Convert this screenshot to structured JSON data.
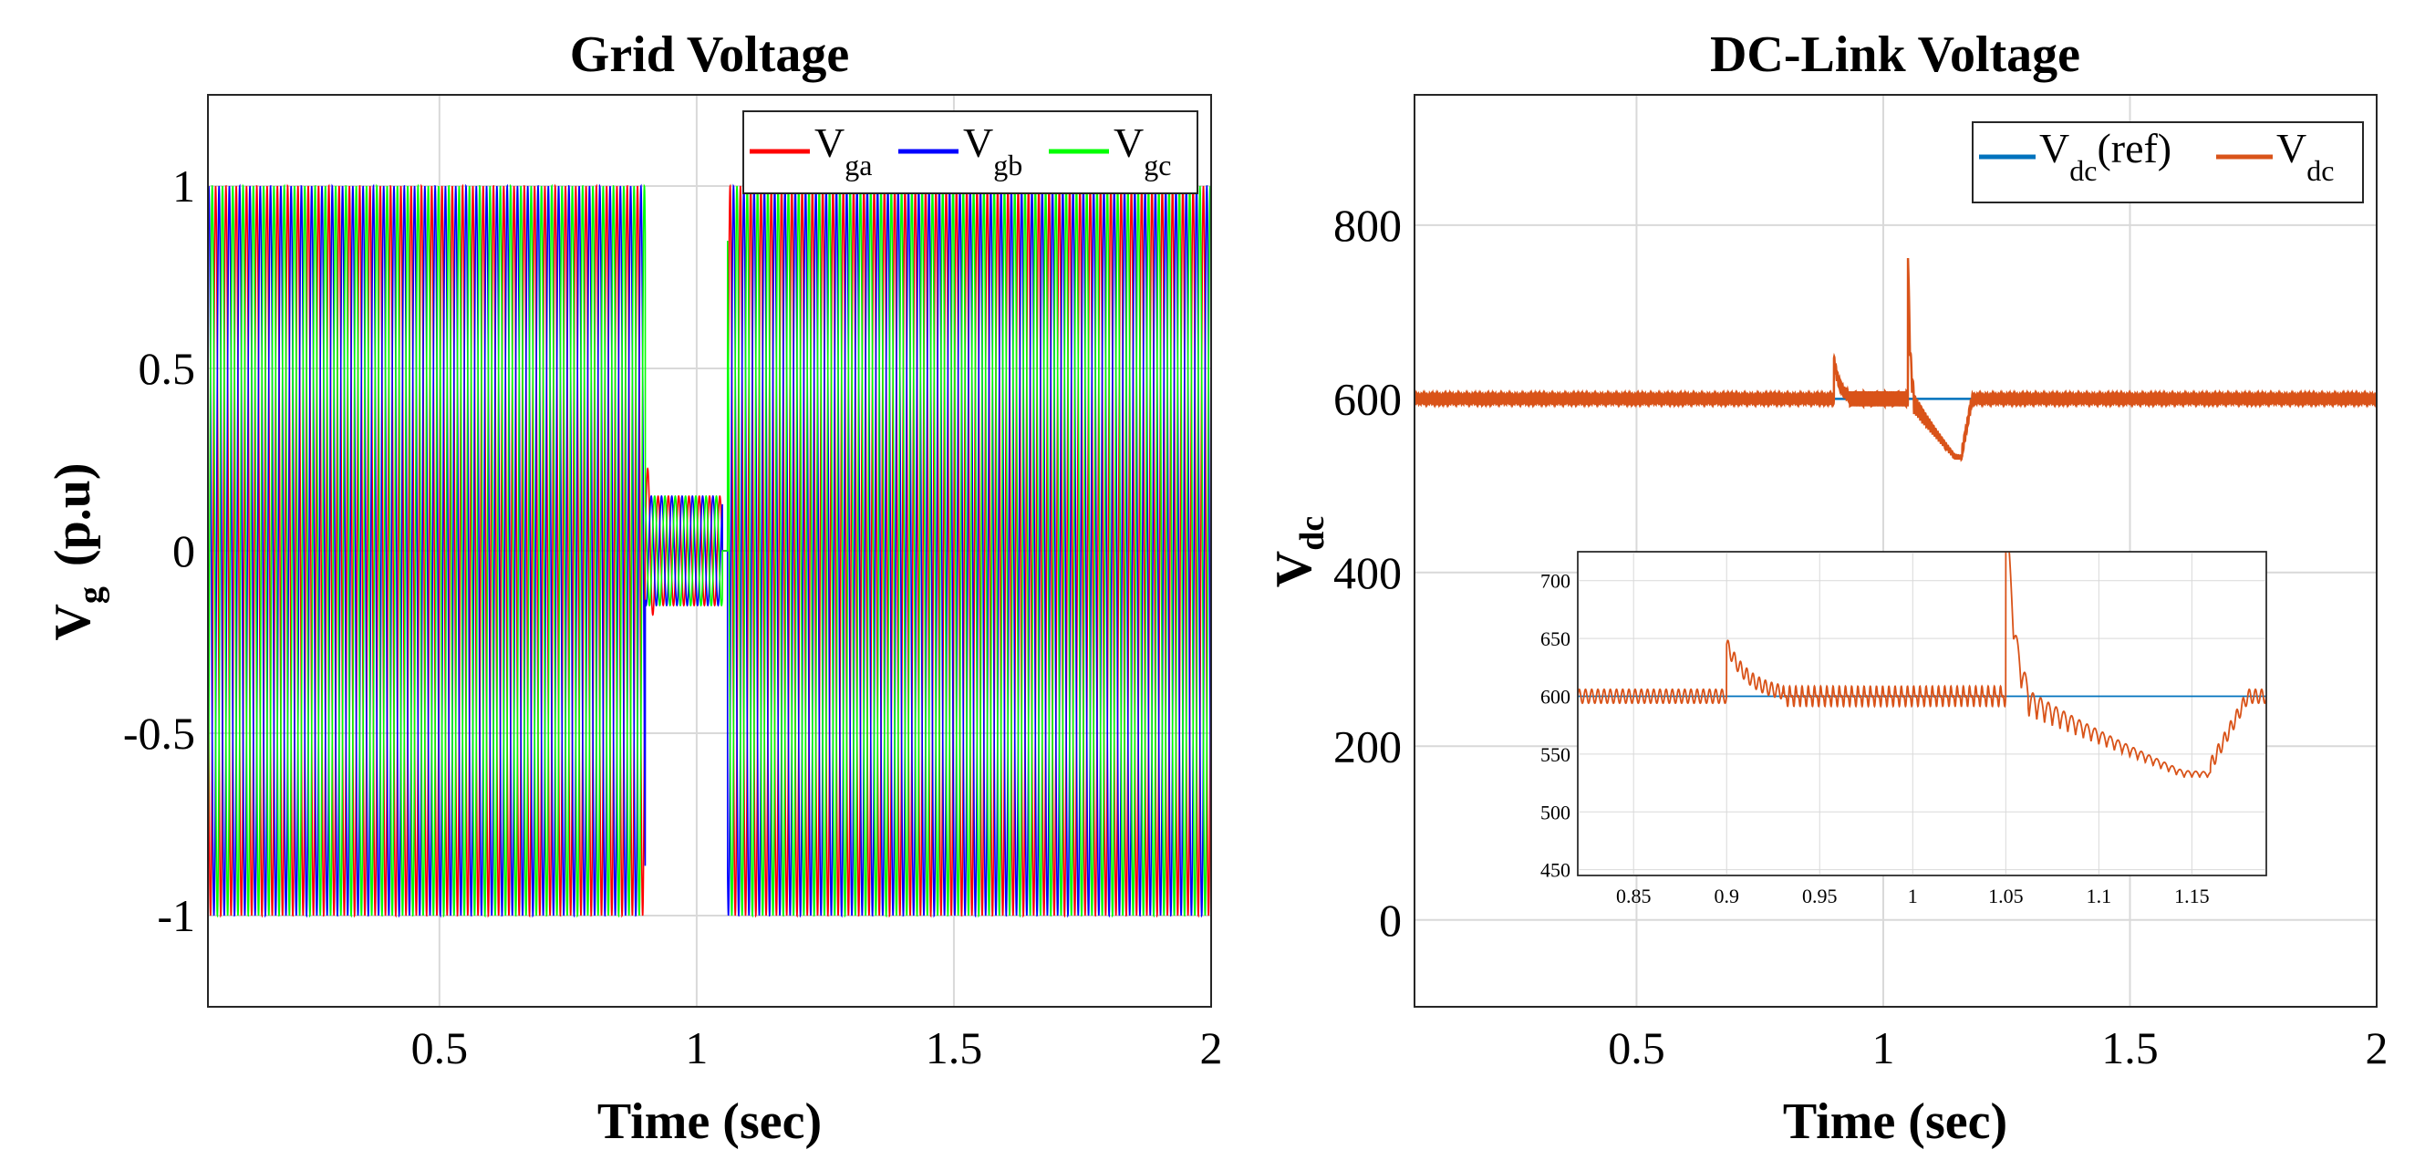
{
  "chart_data": [
    {
      "type": "line",
      "title": "Grid Voltage",
      "xlabel": "Time (sec)",
      "ylabel": "V",
      "ylabel_sub": "g",
      "ylabel_suffix": "(p.u)",
      "xlim": [
        0.05,
        2.0
      ],
      "ylim": [
        -1.25,
        1.25
      ],
      "xticks": [
        0.5,
        1,
        1.5,
        2
      ],
      "xtick_labels": [
        "0.5",
        "1",
        "1.5",
        "2"
      ],
      "yticks": [
        -1,
        -0.5,
        0,
        0.5,
        1
      ],
      "ytick_labels": [
        "-1",
        "-0.5",
        "0",
        "0.5",
        "1"
      ],
      "grid": true,
      "legend_position": "top-right",
      "legend": [
        {
          "label": "V",
          "sub": "ga",
          "color": "#ff0000"
        },
        {
          "label": "V",
          "sub": "gb",
          "color": "#0000ff"
        },
        {
          "label": "V",
          "sub": "gc",
          "color": "#00ff00"
        }
      ],
      "series": [
        {
          "name": "Vga",
          "amplitude_normal": 1.0,
          "amplitude_fault": 0.15,
          "fault_start": 0.9,
          "fault_end": 1.05,
          "fault_peak": 0.25
        },
        {
          "name": "Vgb",
          "amplitude_normal": 1.0,
          "amplitude_fault": 0.15,
          "fault_start": 0.9,
          "fault_end": 1.05
        },
        {
          "name": "Vgc",
          "amplitude_normal": 1.0,
          "amplitude_fault": 0.15,
          "fault_start": 0.9,
          "fault_end": 1.05
        }
      ],
      "gap_start": 1.05,
      "gap_end": 1.06
    },
    {
      "type": "line",
      "title": "DC-Link Voltage",
      "xlabel": "Time (sec)",
      "ylabel": "V",
      "ylabel_sub": "dc",
      "xlim": [
        0.05,
        2.0
      ],
      "ylim": [
        -100,
        950
      ],
      "xticks": [
        0.5,
        1,
        1.5,
        2
      ],
      "xtick_labels": [
        "0.5",
        "1",
        "1.5",
        "2"
      ],
      "yticks": [
        0,
        200,
        400,
        600,
        800
      ],
      "ytick_labels": [
        "0",
        "200",
        "400",
        "600",
        "800"
      ],
      "grid": true,
      "legend_position": "top-right",
      "legend": [
        {
          "label": "V",
          "sub": "dc",
          "suffix": "(ref)",
          "color": "#0072bd"
        },
        {
          "label": "V",
          "sub": "dc",
          "suffix": "",
          "color": "#d95319"
        }
      ],
      "series": [
        {
          "name": "Vdc(ref)",
          "constant": 600
        },
        {
          "name": "Vdc",
          "nominal": 600,
          "ripple": 6,
          "fault1_time": 0.9,
          "fault1_peak": 645,
          "fault2_time": 1.05,
          "fault2_peak": 775,
          "min_value": 540,
          "recovery_time": 1.16
        }
      ],
      "inset": {
        "xlim": [
          0.82,
          1.19
        ],
        "ylim": [
          445,
          725
        ],
        "xticks": [
          0.85,
          0.9,
          0.95,
          1,
          1.05,
          1.1,
          1.15
        ],
        "xtick_labels": [
          "0.85",
          "0.9",
          "0.95",
          "1",
          "1.05",
          "1.1",
          "1.15"
        ],
        "yticks": [
          450,
          500,
          550,
          600,
          650,
          700
        ],
        "ytick_labels": [
          "450",
          "500",
          "550",
          "600",
          "650",
          "700"
        ]
      }
    }
  ]
}
